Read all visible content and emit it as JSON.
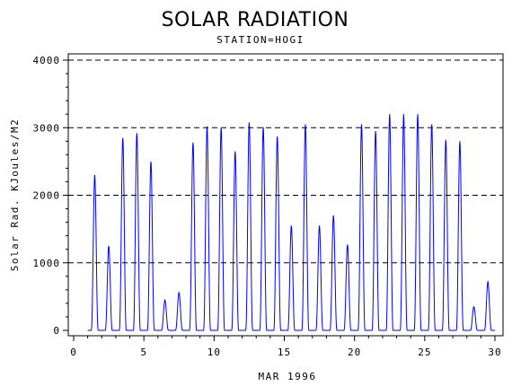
{
  "chart_data": {
    "type": "line",
    "title": "SOLAR RADIATION",
    "subtitle": "STATION=HOGI",
    "xlabel": "MAR 1996",
    "ylabel": "Solar Rad. KJoules/M2",
    "xlim": [
      0,
      30
    ],
    "ylim": [
      0,
      4000
    ],
    "x_ticks": [
      0,
      5,
      10,
      15,
      20,
      25,
      30
    ],
    "x_tick_labels": [
      "0",
      "5",
      "10",
      "15",
      "20",
      "25",
      "30"
    ],
    "y_ticks": [
      0,
      1000,
      2000,
      3000,
      4000
    ],
    "y_tick_labels": [
      "0",
      "1000",
      "2000",
      "3000",
      "4000"
    ],
    "grid": "horizontal dashed at major y ticks",
    "line_color": "#0000ff",
    "series": [
      {
        "values_note": "daily peaks (day, peak KJoules/M2)",
        "daily_peaks": [
          [
            1.5,
            2300
          ],
          [
            2.5,
            1250
          ],
          [
            3.5,
            2850
          ],
          [
            4.5,
            2920
          ],
          [
            5.5,
            2500
          ],
          [
            6.5,
            450
          ],
          [
            7.5,
            560
          ],
          [
            8.5,
            2780
          ],
          [
            9.5,
            3020
          ],
          [
            10.5,
            3000
          ],
          [
            11.5,
            2650
          ],
          [
            12.5,
            3080
          ],
          [
            13.5,
            3010
          ],
          [
            14.5,
            2870
          ],
          [
            15.5,
            1550
          ],
          [
            16.5,
            3050
          ],
          [
            17.5,
            1550
          ],
          [
            18.5,
            1700
          ],
          [
            19.5,
            1270
          ],
          [
            20.5,
            3050
          ],
          [
            21.5,
            2950
          ],
          [
            22.5,
            3200
          ],
          [
            23.5,
            3200
          ],
          [
            24.5,
            3200
          ],
          [
            25.5,
            3050
          ],
          [
            26.5,
            2820
          ],
          [
            27.5,
            2800
          ],
          [
            28.5,
            350
          ],
          [
            29.5,
            720
          ]
        ]
      }
    ]
  }
}
